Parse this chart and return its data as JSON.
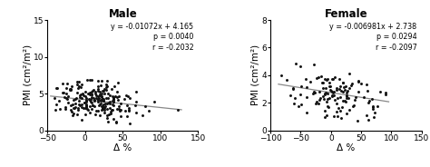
{
  "male": {
    "title": "Male",
    "equation": "y = -0.01072x + 4.165",
    "p_value": "p = 0.0040",
    "r_value": "r = -0.2032",
    "slope": -0.01072,
    "intercept": 4.165,
    "xlim": [
      -50,
      150
    ],
    "ylim": [
      0,
      15
    ],
    "xticks": [
      -50,
      0,
      50,
      100,
      150
    ],
    "yticks": [
      0,
      5,
      10,
      15
    ],
    "xlabel": "Δ %",
    "ylabel": "PMI (cm²/m²)",
    "seed": 42,
    "n_points": 230,
    "x_mean": 15,
    "x_std": 28,
    "y_noise": 1.3
  },
  "female": {
    "title": "Female",
    "equation": "y = -0.006981x + 2.738",
    "p_value": "p = 0.0294",
    "r_value": "r = -0.2097",
    "slope": -0.006981,
    "intercept": 2.738,
    "xlim": [
      -100,
      150
    ],
    "ylim": [
      0,
      8
    ],
    "xticks": [
      -100,
      -50,
      0,
      50,
      100,
      150
    ],
    "yticks": [
      0,
      2,
      4,
      6,
      8
    ],
    "xlabel": "Δ %",
    "ylabel": "PMI (cm²/m²)",
    "seed": 7,
    "n_points": 130,
    "x_mean": 5,
    "x_std": 38,
    "y_noise": 0.9
  },
  "dot_color": "#111111",
  "line_color": "#888888",
  "annotation_fontsize": 5.8,
  "title_fontsize": 8.5,
  "label_fontsize": 7.5,
  "tick_fontsize": 6.5
}
